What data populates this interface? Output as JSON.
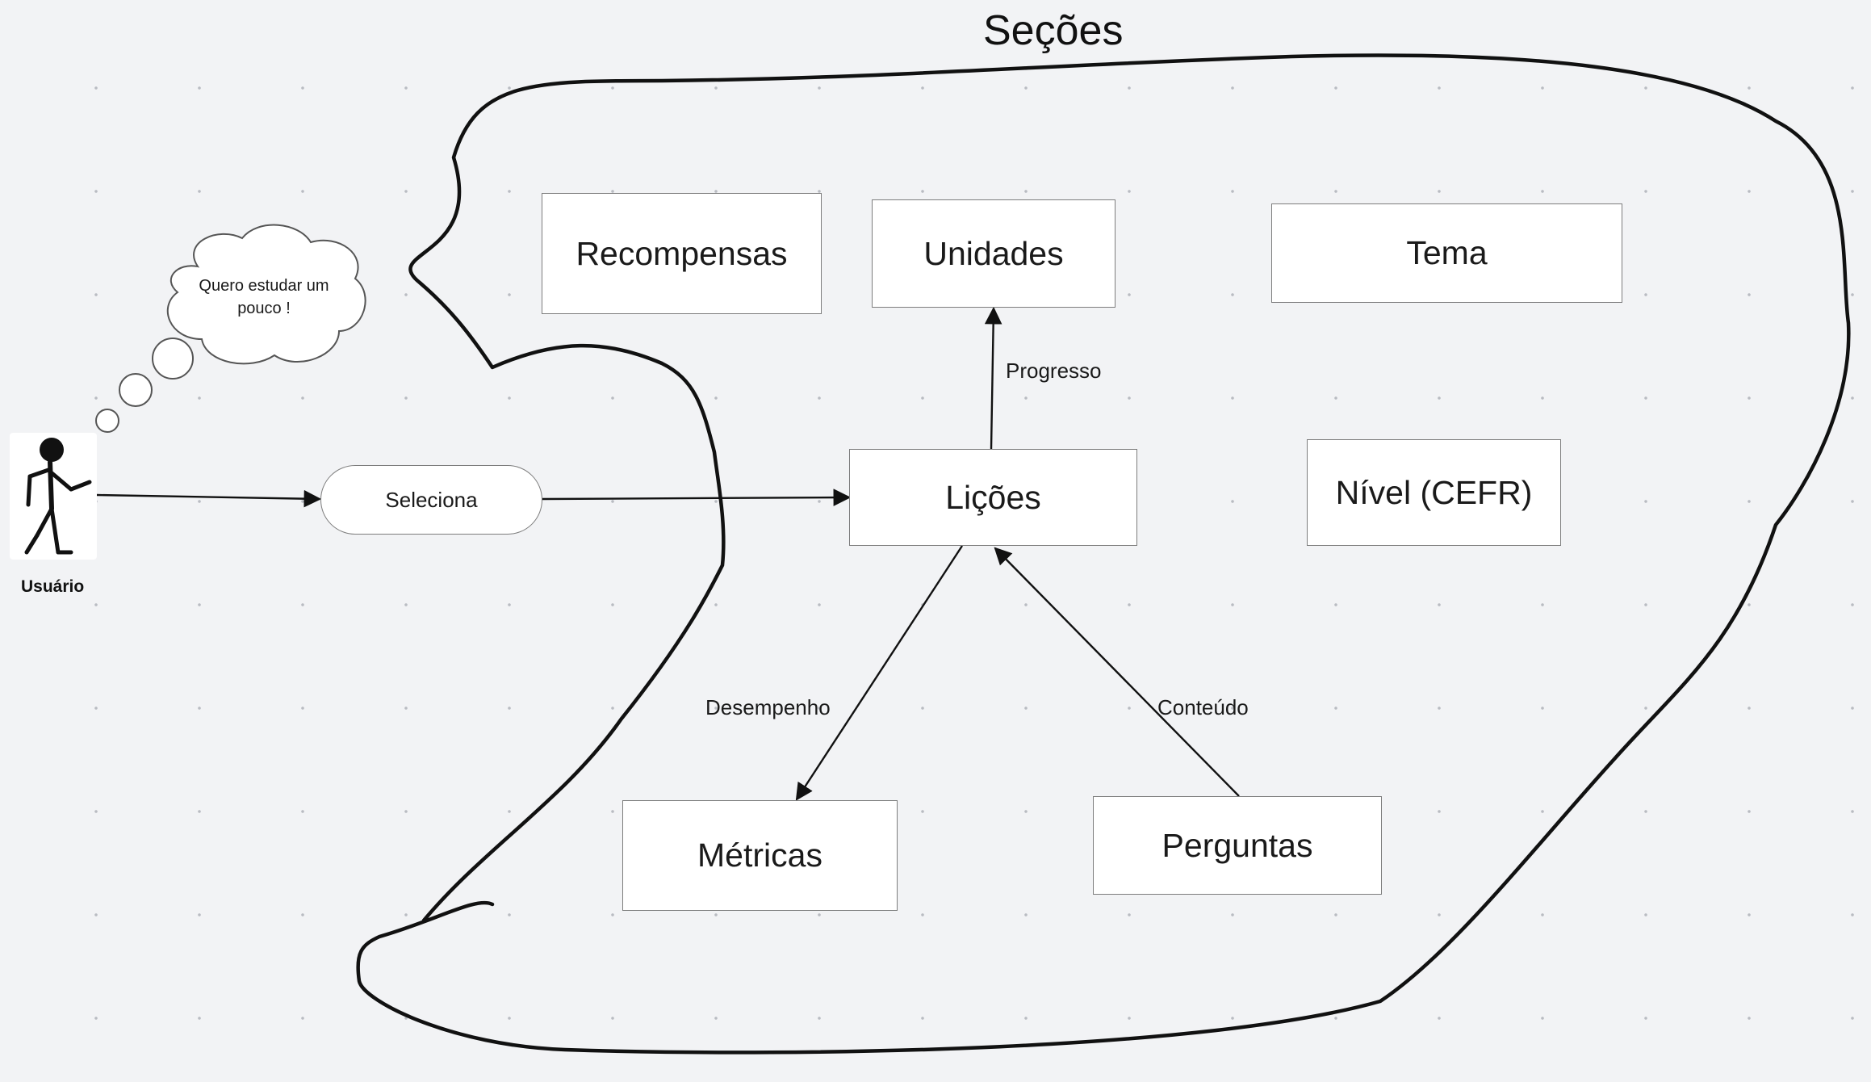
{
  "diagram": {
    "title": "Seções",
    "actor": {
      "label": "Usuário",
      "thought": "Quero estudar um pouco !"
    },
    "pill": {
      "label": "Seleciona"
    },
    "boxes": {
      "recompensas": "Recompensas",
      "unidades": "Unidades",
      "tema": "Tema",
      "licoes": "Lições",
      "nivel": "Nível (CEFR)",
      "metricas": "Métricas",
      "perguntas": "Perguntas"
    },
    "edges": {
      "progresso": "Progresso",
      "desempenho": "Desempenho",
      "conteudo": "Conteúdo"
    },
    "colors": {
      "background": "#f2f3f5",
      "stroke": "#111111",
      "box_border": "#7d7d7d",
      "box_fill": "#ffffff"
    }
  }
}
